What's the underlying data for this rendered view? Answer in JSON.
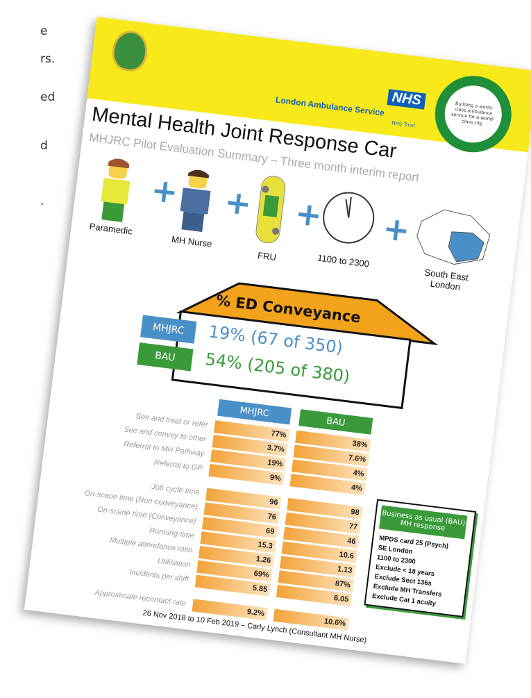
{
  "left_fragments": [
    "e",
    "rs.",
    "ed",
    "d",
    "."
  ],
  "header": {
    "nhs": "NHS",
    "organisation": "London Ambulance Service",
    "trust": "NHS Trust",
    "badge": "Building a world-class ambulance service for a world-class city"
  },
  "title": "Mental Health Joint Response Car",
  "subtitle": "MHJRC Pilot Evaluation Summary – Three month interim report",
  "components": [
    "Paramedic",
    "MH Nurse",
    "FRU",
    "1100 to 2300",
    "South East London"
  ],
  "conveyance": {
    "title": "% ED Conveyance",
    "rows": [
      {
        "group": "MHJRC",
        "value": "19% (67 of 350)"
      },
      {
        "group": "BAU",
        "value": "54% (205 of 380)"
      }
    ]
  },
  "table": {
    "columns": [
      "MHJRC",
      "BAU"
    ],
    "sections": [
      [
        [
          "See and treat or refer",
          "77%",
          "38%"
        ],
        [
          "See and convey to other",
          "3.7%",
          "7.6%"
        ],
        [
          "Referral to MH Pathway",
          "19%",
          "4%"
        ],
        [
          "Referral to GP",
          "9%",
          "4%"
        ]
      ],
      [
        [
          "Job cycle time",
          "96",
          "98"
        ],
        [
          "On-scene time (Non-conveyance)",
          "76",
          "77"
        ],
        [
          "On-scene time (Conveyance)",
          "69",
          "46"
        ],
        [
          "Running time",
          "15.3",
          "10.6"
        ],
        [
          "Multiple attendance ratio",
          "1.26",
          "1.13"
        ],
        [
          "Utilisation",
          "69%",
          "87%"
        ],
        [
          "Incidents per shift",
          "5.85",
          "6.05"
        ]
      ],
      [
        [
          "Approximate recontact rate",
          "9.2%",
          "10.6%"
        ]
      ]
    ]
  },
  "bau_box": {
    "title": "Business as usual (BAU) MH response",
    "items": [
      "MPDS card 25 (Psych)",
      "SE London",
      "1100 to 2300",
      "Exclude < 18 years",
      "Exclude Sect 136s",
      "Exclude MH Transfers",
      "Exclude Cat 1 acuity"
    ]
  },
  "footer": "26 Nov 2018 to 10 Feb 2019 – Carly Lynch (Consultant MH Nurse)"
}
